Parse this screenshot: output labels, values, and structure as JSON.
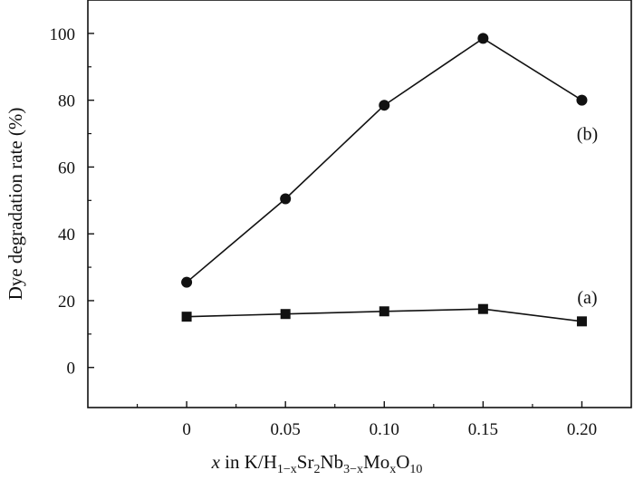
{
  "chart_data": {
    "type": "line",
    "x": [
      0,
      0.05,
      0.1,
      0.15,
      0.2
    ],
    "x_tick_labels": [
      "0",
      "0.05",
      "0.10",
      "0.15",
      "0.20"
    ],
    "xlim": [
      -0.05,
      0.225
    ],
    "ylim": [
      -12,
      110
    ],
    "y_ticks": [
      0,
      20,
      40,
      60,
      80,
      100
    ],
    "y_tick_labels": [
      "0",
      "20",
      "40",
      "60",
      "80",
      "100"
    ],
    "ylabel": "Dye degradation rate (%)",
    "xlabel": {
      "prefix": "x",
      "text_1": " in K/H",
      "sub_1": "1−x",
      "text_2": "Sr",
      "sub_2": "2",
      "text_3": "Nb",
      "sub_3": "3−x",
      "text_4": "Mo",
      "sub_4": "x",
      "text_5": "O",
      "sub_5": "10"
    },
    "series": [
      {
        "name": "(a)",
        "marker": "square",
        "values": [
          15.2,
          16.0,
          16.8,
          17.5,
          13.8
        ]
      },
      {
        "name": "(b)",
        "marker": "circle",
        "values": [
          25.5,
          50.5,
          78.5,
          98.5,
          80.0
        ]
      }
    ],
    "grid": false,
    "legend": "none"
  }
}
